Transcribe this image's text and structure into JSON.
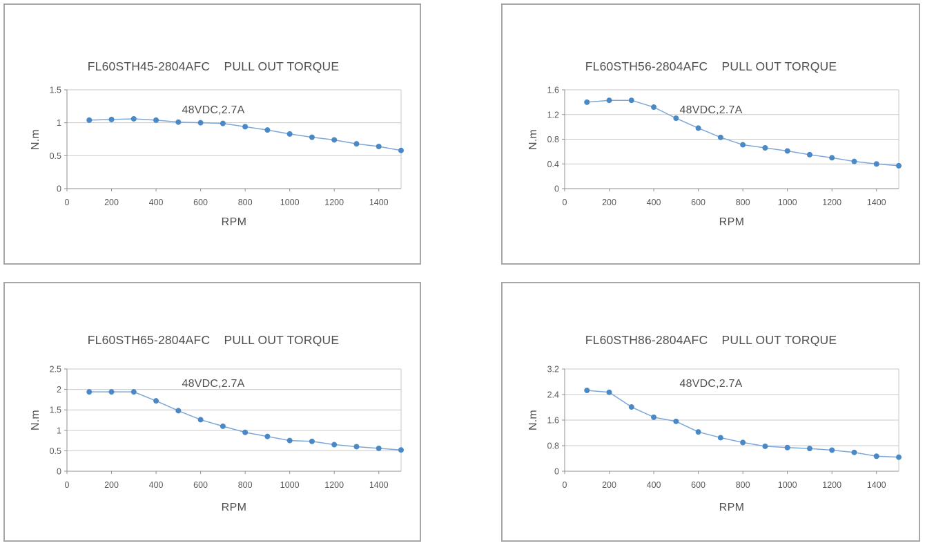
{
  "page": {
    "background": "#ffffff"
  },
  "style": {
    "panel_border_color": "#a7a7ab",
    "grid_color": "#c9c9c9",
    "axis_color": "#8f8f8f",
    "text_color": "#595959",
    "title_color": "#4f4f4f",
    "line_color": "#7ba7d7",
    "marker_color": "#4a89c5"
  },
  "chart_data": [
    {
      "type": "line",
      "title": "FL60STH45-2804AFC    PULL OUT TORQUE",
      "subtitle": "48VDC,2.7A",
      "xlabel": "RPM",
      "ylabel": "N.m",
      "x": [
        100,
        200,
        300,
        400,
        500,
        600,
        700,
        800,
        900,
        1000,
        1100,
        1200,
        1300,
        1400,
        1500
      ],
      "values": [
        1.04,
        1.05,
        1.06,
        1.04,
        1.01,
        1.0,
        0.99,
        0.94,
        0.89,
        0.83,
        0.78,
        0.74,
        0.68,
        0.64,
        0.58
      ],
      "xlim": [
        0,
        1500
      ],
      "ylim": [
        0,
        1.5
      ],
      "xticks": [
        0,
        200,
        400,
        600,
        800,
        1000,
        1200,
        1400
      ],
      "xtick_labels": [
        "0",
        "200",
        "400",
        "600",
        "800",
        "1000",
        "1200",
        "1400"
      ],
      "yticks": [
        0,
        0.5,
        1,
        1.5
      ],
      "ytick_labels": [
        "0",
        "0.5",
        "1",
        "1.5"
      ],
      "grid": "horizontal",
      "legend": "none",
      "marker": "circle"
    },
    {
      "type": "line",
      "title": "FL60STH56-2804AFC    PULL OUT TORQUE",
      "subtitle": "48VDC,2.7A",
      "xlabel": "RPM",
      "ylabel": "N.m",
      "x": [
        100,
        200,
        300,
        400,
        500,
        600,
        700,
        800,
        900,
        1000,
        1100,
        1200,
        1300,
        1400,
        1500
      ],
      "values": [
        1.4,
        1.43,
        1.43,
        1.32,
        1.14,
        0.98,
        0.83,
        0.71,
        0.66,
        0.61,
        0.55,
        0.5,
        0.44,
        0.4,
        0.37
      ],
      "xlim": [
        0,
        1500
      ],
      "ylim": [
        0,
        1.6
      ],
      "xticks": [
        0,
        200,
        400,
        600,
        800,
        1000,
        1200,
        1400
      ],
      "xtick_labels": [
        "0",
        "200",
        "400",
        "600",
        "800",
        "1000",
        "1200",
        "1400"
      ],
      "yticks": [
        0,
        0.4,
        0.8,
        1.2,
        1.6
      ],
      "ytick_labels": [
        "0",
        "0.4",
        "0.8",
        "1.2",
        "1.6"
      ],
      "grid": "horizontal",
      "legend": "none",
      "marker": "circle"
    },
    {
      "type": "line",
      "title": "FL60STH65-2804AFC    PULL OUT TORQUE",
      "subtitle": "48VDC,2.7A",
      "xlabel": "RPM",
      "ylabel": "N.m",
      "x": [
        100,
        200,
        300,
        400,
        500,
        600,
        700,
        800,
        900,
        1000,
        1100,
        1200,
        1300,
        1400,
        1500
      ],
      "values": [
        1.94,
        1.94,
        1.94,
        1.72,
        1.48,
        1.26,
        1.1,
        0.95,
        0.85,
        0.75,
        0.73,
        0.65,
        0.6,
        0.56,
        0.52
      ],
      "xlim": [
        0,
        1500
      ],
      "ylim": [
        0,
        2.5
      ],
      "xticks": [
        0,
        200,
        400,
        600,
        800,
        1000,
        1200,
        1400
      ],
      "xtick_labels": [
        "0",
        "200",
        "400",
        "600",
        "800",
        "1000",
        "1200",
        "1400"
      ],
      "yticks": [
        0,
        0.5,
        1,
        1.5,
        2,
        2.5
      ],
      "ytick_labels": [
        "0",
        "0.5",
        "1",
        "1.5",
        "2",
        "2.5"
      ],
      "grid": "horizontal",
      "legend": "none",
      "marker": "circle"
    },
    {
      "type": "line",
      "title": "FL60STH86-2804AFC    PULL OUT TORQUE",
      "subtitle": "48VDC,2.7A",
      "xlabel": "RPM",
      "ylabel": "N.m",
      "x": [
        100,
        200,
        300,
        400,
        500,
        600,
        700,
        800,
        900,
        1000,
        1100,
        1200,
        1300,
        1400,
        1500
      ],
      "values": [
        2.53,
        2.47,
        2.01,
        1.69,
        1.56,
        1.23,
        1.05,
        0.9,
        0.78,
        0.74,
        0.71,
        0.66,
        0.59,
        0.47,
        0.44
      ],
      "xlim": [
        0,
        1500
      ],
      "ylim": [
        0,
        3.2
      ],
      "xticks": [
        0,
        200,
        400,
        600,
        800,
        1000,
        1200,
        1400
      ],
      "xtick_labels": [
        "0",
        "200",
        "400",
        "600",
        "800",
        "1000",
        "1200",
        "1400"
      ],
      "yticks": [
        0,
        0.8,
        1.6,
        2.4,
        3.2
      ],
      "ytick_labels": [
        "0",
        "0.8",
        "1.6",
        "2.4",
        "3.2"
      ],
      "grid": "horizontal",
      "legend": "none",
      "marker": "circle"
    }
  ]
}
